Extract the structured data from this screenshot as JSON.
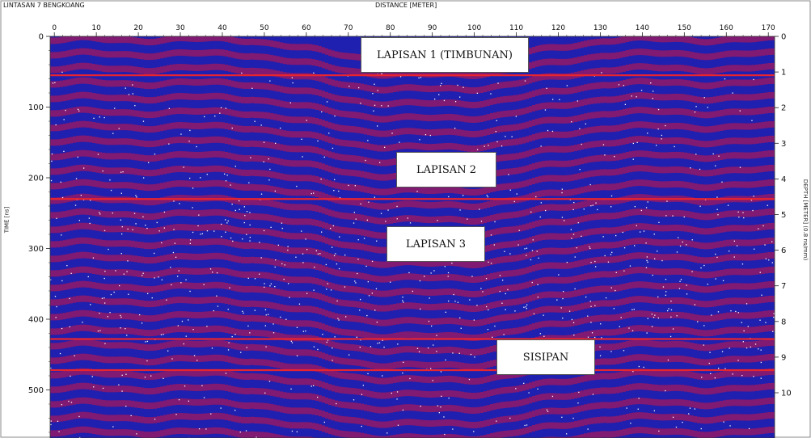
{
  "profile_name": "LINTASAN 7 BENGKOANG",
  "chart_data": {
    "type": "heatmap",
    "title": "",
    "xlabel": "DISTANCE [METER]",
    "ylabel_left": "TIME [ns]",
    "ylabel_right": "DEPTH [METER] (0.8 ns/mm)",
    "x_ticks": [
      0,
      10,
      20,
      30,
      40,
      50,
      60,
      70,
      80,
      90,
      100,
      110,
      120,
      130,
      140,
      150,
      160,
      170
    ],
    "y_ticks_left": [
      0,
      100,
      200,
      300,
      400,
      500
    ],
    "y_ticks_right": [
      0,
      1,
      2,
      3,
      4,
      5,
      6,
      7,
      8,
      9,
      10
    ],
    "xlim": [
      -1,
      171.5
    ],
    "ylim_left": [
      0,
      568
    ],
    "grid": false,
    "colors": {
      "positive": "#8b1a6b",
      "negative": "#1f1fb0",
      "noise": "#ffffff",
      "boundary": "#e8242f"
    },
    "boundaries_time_ns": [
      55,
      230,
      428,
      472
    ],
    "layers": [
      {
        "label": "LAPISAN 1 (TIMBUNAN)",
        "x": 78,
        "t": 30
      },
      {
        "label": "LAPISAN 2",
        "x": 88,
        "t": 185
      },
      {
        "label": "LAPISAN 3",
        "x": 88,
        "t": 292
      },
      {
        "label": "SISIPAN",
        "x": 116,
        "t": 447
      }
    ]
  }
}
